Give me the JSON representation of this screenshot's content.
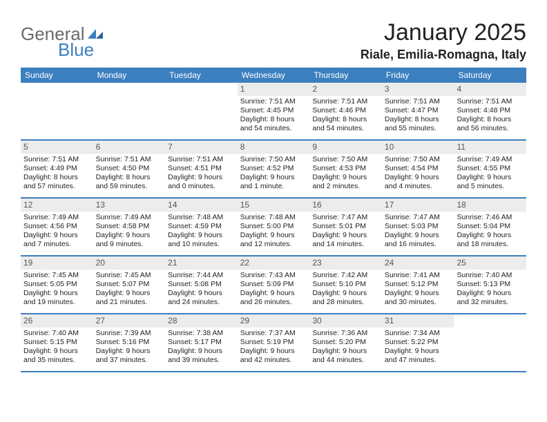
{
  "brand": {
    "name_part1": "General",
    "name_part2": "Blue",
    "part1_color": "#6a6a6a",
    "part2_color": "#3b7fbf"
  },
  "header": {
    "month_title": "January 2025",
    "location": "Riale, Emilia-Romagna, Italy"
  },
  "colors": {
    "header_bg": "#3b7fbf",
    "header_text": "#ffffff",
    "daynum_bg": "#ececec",
    "text": "#222222",
    "week_border": "#3b7fbf",
    "page_bg": "#ffffff"
  },
  "fonts": {
    "title_size": 34,
    "location_size": 18,
    "weekday_size": 12,
    "cell_size": 10.5
  },
  "weekdays": [
    "Sunday",
    "Monday",
    "Tuesday",
    "Wednesday",
    "Thursday",
    "Friday",
    "Saturday"
  ],
  "weeks": [
    [
      {
        "blank": true
      },
      {
        "blank": true
      },
      {
        "blank": true
      },
      {
        "day": "1",
        "sunrise": "Sunrise: 7:51 AM",
        "sunset": "Sunset: 4:45 PM",
        "daylight1": "Daylight: 8 hours",
        "daylight2": "and 54 minutes."
      },
      {
        "day": "2",
        "sunrise": "Sunrise: 7:51 AM",
        "sunset": "Sunset: 4:46 PM",
        "daylight1": "Daylight: 8 hours",
        "daylight2": "and 54 minutes."
      },
      {
        "day": "3",
        "sunrise": "Sunrise: 7:51 AM",
        "sunset": "Sunset: 4:47 PM",
        "daylight1": "Daylight: 8 hours",
        "daylight2": "and 55 minutes."
      },
      {
        "day": "4",
        "sunrise": "Sunrise: 7:51 AM",
        "sunset": "Sunset: 4:48 PM",
        "daylight1": "Daylight: 8 hours",
        "daylight2": "and 56 minutes."
      }
    ],
    [
      {
        "day": "5",
        "sunrise": "Sunrise: 7:51 AM",
        "sunset": "Sunset: 4:49 PM",
        "daylight1": "Daylight: 8 hours",
        "daylight2": "and 57 minutes."
      },
      {
        "day": "6",
        "sunrise": "Sunrise: 7:51 AM",
        "sunset": "Sunset: 4:50 PM",
        "daylight1": "Daylight: 8 hours",
        "daylight2": "and 59 minutes."
      },
      {
        "day": "7",
        "sunrise": "Sunrise: 7:51 AM",
        "sunset": "Sunset: 4:51 PM",
        "daylight1": "Daylight: 9 hours",
        "daylight2": "and 0 minutes."
      },
      {
        "day": "8",
        "sunrise": "Sunrise: 7:50 AM",
        "sunset": "Sunset: 4:52 PM",
        "daylight1": "Daylight: 9 hours",
        "daylight2": "and 1 minute."
      },
      {
        "day": "9",
        "sunrise": "Sunrise: 7:50 AM",
        "sunset": "Sunset: 4:53 PM",
        "daylight1": "Daylight: 9 hours",
        "daylight2": "and 2 minutes."
      },
      {
        "day": "10",
        "sunrise": "Sunrise: 7:50 AM",
        "sunset": "Sunset: 4:54 PM",
        "daylight1": "Daylight: 9 hours",
        "daylight2": "and 4 minutes."
      },
      {
        "day": "11",
        "sunrise": "Sunrise: 7:49 AM",
        "sunset": "Sunset: 4:55 PM",
        "daylight1": "Daylight: 9 hours",
        "daylight2": "and 5 minutes."
      }
    ],
    [
      {
        "day": "12",
        "sunrise": "Sunrise: 7:49 AM",
        "sunset": "Sunset: 4:56 PM",
        "daylight1": "Daylight: 9 hours",
        "daylight2": "and 7 minutes."
      },
      {
        "day": "13",
        "sunrise": "Sunrise: 7:49 AM",
        "sunset": "Sunset: 4:58 PM",
        "daylight1": "Daylight: 9 hours",
        "daylight2": "and 9 minutes."
      },
      {
        "day": "14",
        "sunrise": "Sunrise: 7:48 AM",
        "sunset": "Sunset: 4:59 PM",
        "daylight1": "Daylight: 9 hours",
        "daylight2": "and 10 minutes."
      },
      {
        "day": "15",
        "sunrise": "Sunrise: 7:48 AM",
        "sunset": "Sunset: 5:00 PM",
        "daylight1": "Daylight: 9 hours",
        "daylight2": "and 12 minutes."
      },
      {
        "day": "16",
        "sunrise": "Sunrise: 7:47 AM",
        "sunset": "Sunset: 5:01 PM",
        "daylight1": "Daylight: 9 hours",
        "daylight2": "and 14 minutes."
      },
      {
        "day": "17",
        "sunrise": "Sunrise: 7:47 AM",
        "sunset": "Sunset: 5:03 PM",
        "daylight1": "Daylight: 9 hours",
        "daylight2": "and 16 minutes."
      },
      {
        "day": "18",
        "sunrise": "Sunrise: 7:46 AM",
        "sunset": "Sunset: 5:04 PM",
        "daylight1": "Daylight: 9 hours",
        "daylight2": "and 18 minutes."
      }
    ],
    [
      {
        "day": "19",
        "sunrise": "Sunrise: 7:45 AM",
        "sunset": "Sunset: 5:05 PM",
        "daylight1": "Daylight: 9 hours",
        "daylight2": "and 19 minutes."
      },
      {
        "day": "20",
        "sunrise": "Sunrise: 7:45 AM",
        "sunset": "Sunset: 5:07 PM",
        "daylight1": "Daylight: 9 hours",
        "daylight2": "and 21 minutes."
      },
      {
        "day": "21",
        "sunrise": "Sunrise: 7:44 AM",
        "sunset": "Sunset: 5:08 PM",
        "daylight1": "Daylight: 9 hours",
        "daylight2": "and 24 minutes."
      },
      {
        "day": "22",
        "sunrise": "Sunrise: 7:43 AM",
        "sunset": "Sunset: 5:09 PM",
        "daylight1": "Daylight: 9 hours",
        "daylight2": "and 26 minutes."
      },
      {
        "day": "23",
        "sunrise": "Sunrise: 7:42 AM",
        "sunset": "Sunset: 5:10 PM",
        "daylight1": "Daylight: 9 hours",
        "daylight2": "and 28 minutes."
      },
      {
        "day": "24",
        "sunrise": "Sunrise: 7:41 AM",
        "sunset": "Sunset: 5:12 PM",
        "daylight1": "Daylight: 9 hours",
        "daylight2": "and 30 minutes."
      },
      {
        "day": "25",
        "sunrise": "Sunrise: 7:40 AM",
        "sunset": "Sunset: 5:13 PM",
        "daylight1": "Daylight: 9 hours",
        "daylight2": "and 32 minutes."
      }
    ],
    [
      {
        "day": "26",
        "sunrise": "Sunrise: 7:40 AM",
        "sunset": "Sunset: 5:15 PM",
        "daylight1": "Daylight: 9 hours",
        "daylight2": "and 35 minutes."
      },
      {
        "day": "27",
        "sunrise": "Sunrise: 7:39 AM",
        "sunset": "Sunset: 5:16 PM",
        "daylight1": "Daylight: 9 hours",
        "daylight2": "and 37 minutes."
      },
      {
        "day": "28",
        "sunrise": "Sunrise: 7:38 AM",
        "sunset": "Sunset: 5:17 PM",
        "daylight1": "Daylight: 9 hours",
        "daylight2": "and 39 minutes."
      },
      {
        "day": "29",
        "sunrise": "Sunrise: 7:37 AM",
        "sunset": "Sunset: 5:19 PM",
        "daylight1": "Daylight: 9 hours",
        "daylight2": "and 42 minutes."
      },
      {
        "day": "30",
        "sunrise": "Sunrise: 7:36 AM",
        "sunset": "Sunset: 5:20 PM",
        "daylight1": "Daylight: 9 hours",
        "daylight2": "and 44 minutes."
      },
      {
        "day": "31",
        "sunrise": "Sunrise: 7:34 AM",
        "sunset": "Sunset: 5:22 PM",
        "daylight1": "Daylight: 9 hours",
        "daylight2": "and 47 minutes."
      },
      {
        "blank": true
      }
    ]
  ]
}
